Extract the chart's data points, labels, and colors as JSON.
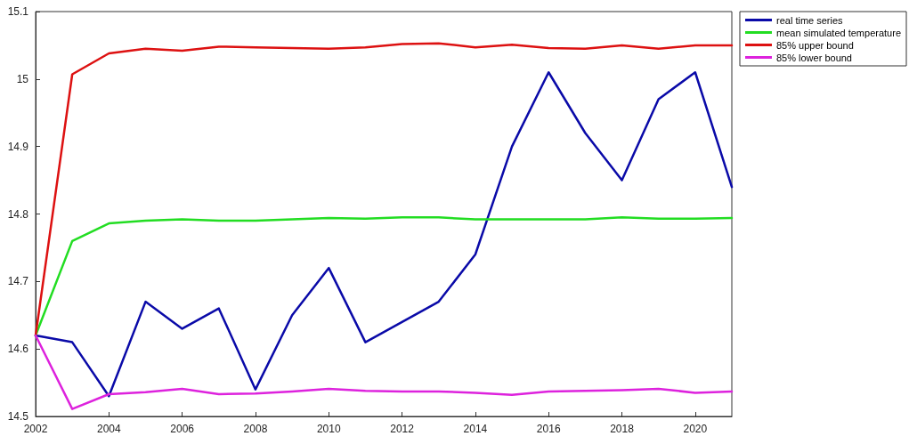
{
  "chart_data": {
    "type": "line",
    "x": [
      2002,
      2003,
      2004,
      2005,
      2006,
      2007,
      2008,
      2009,
      2010,
      2011,
      2012,
      2013,
      2014,
      2015,
      2016,
      2017,
      2018,
      2019,
      2020,
      2021
    ],
    "series": [
      {
        "name": "real time series",
        "color": "#0a0aa8",
        "values": [
          14.62,
          14.61,
          14.53,
          14.67,
          14.63,
          14.66,
          14.54,
          14.65,
          14.72,
          14.61,
          14.64,
          14.67,
          14.74,
          14.9,
          15.01,
          14.92,
          14.85,
          14.97,
          15.01,
          14.84
        ]
      },
      {
        "name": "mean simulated temperature",
        "color": "#22dd22",
        "values": [
          14.62,
          14.76,
          14.786,
          14.79,
          14.792,
          14.79,
          14.79,
          14.792,
          14.794,
          14.793,
          14.795,
          14.795,
          14.792,
          14.792,
          14.792,
          14.792,
          14.795,
          14.793,
          14.793,
          14.794
        ]
      },
      {
        "name": "85% upper bound",
        "color": "#dd1111",
        "values": [
          14.62,
          15.007,
          15.038,
          15.045,
          15.042,
          15.048,
          15.047,
          15.046,
          15.045,
          15.047,
          15.052,
          15.053,
          15.047,
          15.051,
          15.046,
          15.045,
          15.05,
          15.045,
          15.05,
          15.05
        ]
      },
      {
        "name": "85% lower bound",
        "color": "#dd22dd",
        "values": [
          14.62,
          14.511,
          14.533,
          14.536,
          14.541,
          14.533,
          14.534,
          14.537,
          14.541,
          14.538,
          14.537,
          14.537,
          14.535,
          14.532,
          14.537,
          14.538,
          14.539,
          14.541,
          14.535,
          14.537
        ]
      }
    ],
    "xlim": [
      2002,
      2021
    ],
    "xticks": [
      2002,
      2004,
      2006,
      2008,
      2010,
      2012,
      2014,
      2016,
      2018,
      2020
    ],
    "ylim": [
      14.5,
      15.1
    ],
    "yticks": [
      14.5,
      14.6,
      14.7,
      14.8,
      14.9,
      15,
      15.1
    ],
    "grid": false,
    "legend": "top right",
    "marker": "none",
    "line_style": "solid"
  }
}
